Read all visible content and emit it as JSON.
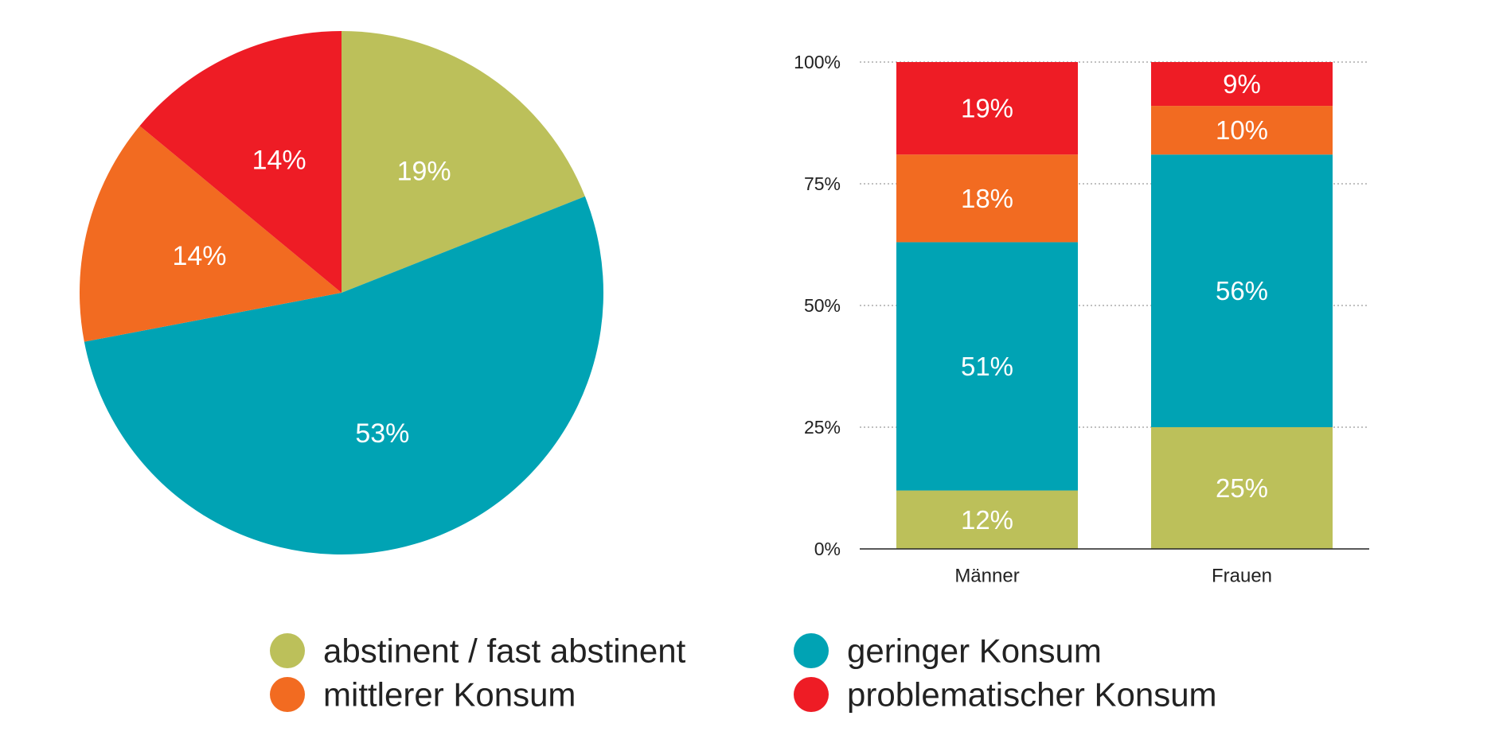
{
  "chart_data": [
    {
      "type": "pie",
      "title": "",
      "slices": [
        {
          "key": "abstinent",
          "value": 19,
          "label": "19%"
        },
        {
          "key": "gering",
          "value": 53,
          "label": "53%"
        },
        {
          "key": "mittel",
          "value": 14,
          "label": "14%"
        },
        {
          "key": "problematisch",
          "value": 14,
          "label": "14%"
        }
      ]
    },
    {
      "type": "bar",
      "stacked": true,
      "title": "",
      "xlabel": "",
      "ylabel": "",
      "categories": [
        "Männer",
        "Frauen"
      ],
      "ylim": [
        0,
        100
      ],
      "yticks": [
        "0%",
        "25%",
        "50%",
        "75%",
        "100%"
      ],
      "grid": true,
      "series": [
        {
          "key": "abstinent",
          "values": [
            12,
            25
          ],
          "labels": [
            "12%",
            "25%"
          ]
        },
        {
          "key": "gering",
          "values": [
            51,
            56
          ],
          "labels": [
            "51%",
            "56%"
          ]
        },
        {
          "key": "mittel",
          "values": [
            18,
            10
          ],
          "labels": [
            "18%",
            "10%"
          ]
        },
        {
          "key": "problematisch",
          "values": [
            19,
            9
          ],
          "labels": [
            "19%",
            "9%"
          ]
        }
      ]
    }
  ],
  "legend": {
    "placement": "bottom",
    "items": [
      {
        "key": "abstinent",
        "label": "abstinent / fast abstinent",
        "color": "#bcc05a"
      },
      {
        "key": "gering",
        "label": "geringer Konsum",
        "color": "#00a3b4"
      },
      {
        "key": "mittel",
        "label": "mittlerer Konsum",
        "color": "#f26b21"
      },
      {
        "key": "problematisch",
        "label": "problematischer Konsum",
        "color": "#ee1c25"
      }
    ]
  }
}
